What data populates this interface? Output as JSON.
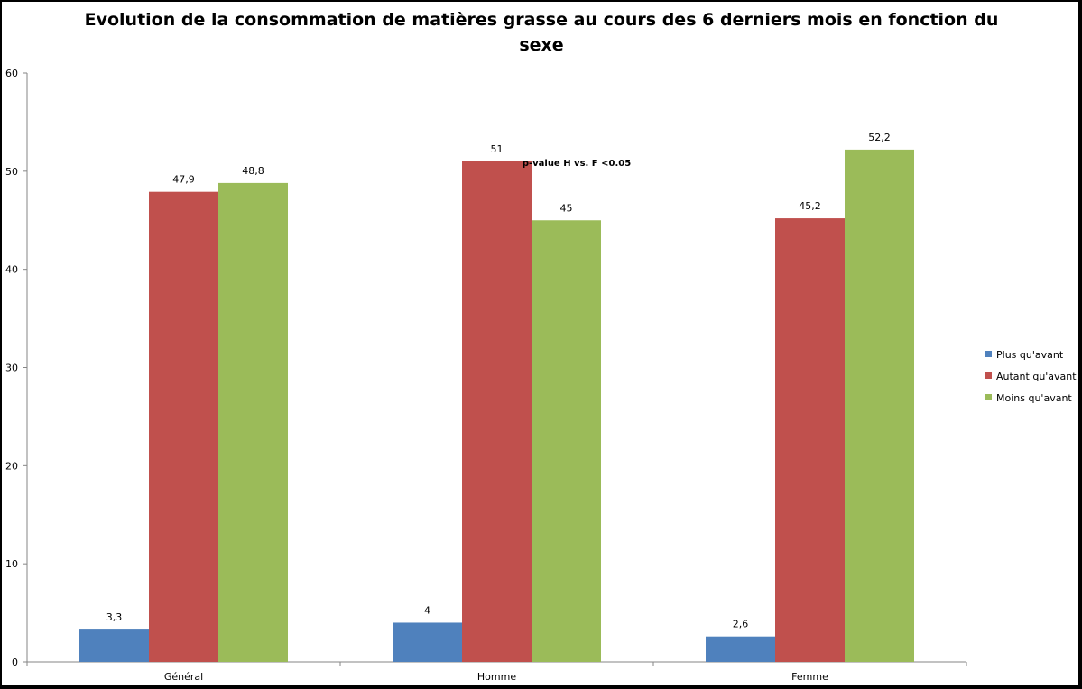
{
  "chart_data": {
    "type": "bar",
    "title_lines": [
      "Evolution de la consommation de matières grasse au cours des 6 derniers mois en fonction du",
      "sexe"
    ],
    "categories": [
      "Général",
      "Homme",
      "Femme"
    ],
    "series": [
      {
        "name": "Plus qu'avant",
        "color": "#4F81BD",
        "values": [
          3.3,
          4,
          2.6
        ]
      },
      {
        "name": "Autant qu'avant",
        "color": "#C0504D",
        "values": [
          47.9,
          51,
          45.2
        ]
      },
      {
        "name": "Moins qu'avant",
        "color": "#9BBB59",
        "values": [
          48.8,
          45,
          52.2
        ]
      }
    ],
    "data_labels": [
      [
        "3,3",
        "47,9",
        "48,8"
      ],
      [
        "4",
        "51",
        "45"
      ],
      [
        "2,6",
        "45,2",
        "52,2"
      ]
    ],
    "ylim": [
      0,
      60
    ],
    "yticks": [
      0,
      10,
      20,
      30,
      40,
      50,
      60
    ],
    "ytick_labels": [
      "0",
      "10",
      "20",
      "30",
      "40",
      "50",
      "60"
    ],
    "xlabel": "",
    "ylabel": "",
    "grid": false,
    "legend_position": "right",
    "annotation": "p-value H vs. F <0.05"
  }
}
